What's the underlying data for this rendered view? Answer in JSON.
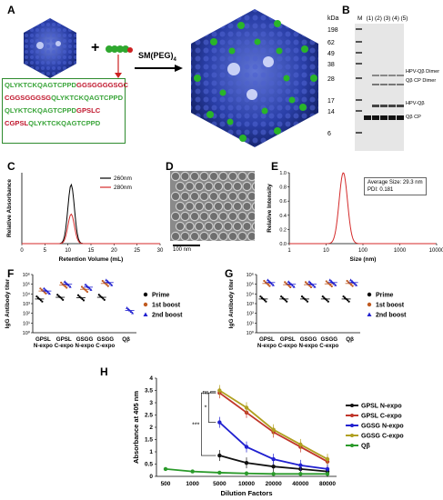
{
  "labels": {
    "A": "A",
    "B": "B",
    "C": "C",
    "D": "D",
    "E": "E",
    "F": "F",
    "G": "G",
    "H": "H"
  },
  "panelA": {
    "plus": "+",
    "reagent": "SM(PEG)",
    "reagent_sub": "4",
    "sequences": [
      [
        {
          "t": "QLYKTCKQAGTCPPD",
          "c": "g"
        },
        {
          "t": "GGSGGGGSGC",
          "c": "r"
        }
      ],
      [
        {
          "t": "CGGSGGGSG",
          "c": "r"
        },
        {
          "t": "QLYKTCKQAGTCPPD",
          "c": "g"
        }
      ],
      [
        {
          "t": "QLYKTCKQAGTCPPD",
          "c": "g"
        },
        {
          "t": "GPSLC",
          "c": "r"
        }
      ],
      [
        {
          "t": "CGPSL",
          "c": "r"
        },
        {
          "t": "QLYKTCKQAGTCPPD",
          "c": "g"
        }
      ]
    ]
  },
  "panelB": {
    "kda": "kDa",
    "markers": [
      "198",
      "62",
      "49",
      "38",
      "28",
      "17",
      "14",
      "6"
    ],
    "lanes": [
      "M",
      "(1)",
      "(2)",
      "(3)",
      "(4)",
      "(5)"
    ],
    "band_labels": [
      "HPV-Qβ Dimer",
      "Qβ CP Dimer",
      "HPV-Qβ",
      "Qβ CP"
    ]
  },
  "panelC": {
    "chart_data": {
      "type": "line",
      "xlabel": "Retention Volume (mL)",
      "ylabel": "Relative Absorbance",
      "xlim": [
        0,
        30
      ],
      "ylim": [
        0,
        1.2
      ],
      "xticks": [
        "0",
        "5",
        "10",
        "15",
        "20",
        "25",
        "30"
      ],
      "series": [
        {
          "name": "260nm",
          "color": "#000000",
          "peak_x": 10.7,
          "peak_y": 1.0,
          "width": 1.0
        },
        {
          "name": "280nm",
          "color": "#d42a2a",
          "peak_x": 10.7,
          "peak_y": 0.5,
          "width": 1.0
        }
      ]
    }
  },
  "panelD": {
    "scale": "100 nm"
  },
  "panelE": {
    "chart_data": {
      "type": "line",
      "xlabel": "Size (nm)",
      "ylabel": "Relative Intensity",
      "xscale": "log",
      "xlim": [
        1,
        10000
      ],
      "ylim": [
        0,
        1.0
      ],
      "xticks": [
        "1",
        "10",
        "100",
        "1000",
        "10000"
      ],
      "yticks": [
        "0.0",
        "0.2",
        "0.4",
        "0.6",
        "0.8",
        "1.0"
      ],
      "series": [
        {
          "name": "",
          "color": "#d42a2a",
          "peak_x": 29.3,
          "peak_y": 1.0
        }
      ]
    },
    "info_line1": "Average Size: 29.3 nm",
    "info_line2": "PDI: 0.181"
  },
  "panelF": {
    "chart_data": {
      "type": "scatter",
      "ylabel": "IgG Antibody titer",
      "yscale": "log",
      "yticks": [
        "10⁰",
        "10¹",
        "10²",
        "10³",
        "10⁴",
        "10⁵",
        "10⁶"
      ],
      "categories": [
        "GPSL N-expo",
        "GPSL C-expo",
        "GSGG N-expo",
        "GSGG C-expo",
        "Qβ"
      ],
      "series": [
        {
          "name": "Prime",
          "color": "#000000",
          "values": [
            3000,
            4500,
            4000,
            4500,
            null
          ]
        },
        {
          "name": "1st boost",
          "color": "#c05a20",
          "values": [
            20000,
            80000,
            30000,
            120000,
            null
          ]
        },
        {
          "name": "2nd boost",
          "color": "#2020d0",
          "values": [
            20000,
            100000,
            50000,
            150000,
            200
          ]
        }
      ]
    },
    "legend": [
      "Prime",
      "1st boost",
      "2nd boost"
    ]
  },
  "panelG": {
    "chart_data": {
      "type": "scatter",
      "ylabel": "IgG Antibody titer",
      "yscale": "log",
      "yticks": [
        "10⁰",
        "10¹",
        "10²",
        "10³",
        "10⁴",
        "10⁵",
        "10⁶"
      ],
      "categories": [
        "GPSL N-expo",
        "GPSL C-expo",
        "GSGG N-expo",
        "GSGG C-expo",
        "Qβ"
      ],
      "series": [
        {
          "name": "Prime",
          "color": "#000000",
          "values": [
            3000,
            3000,
            3000,
            3000,
            3000
          ]
        },
        {
          "name": "1st boost",
          "color": "#c05a20",
          "values": [
            120000,
            90000,
            90000,
            110000,
            120000
          ]
        },
        {
          "name": "2nd boost",
          "color": "#2020d0",
          "values": [
            150000,
            100000,
            100000,
            150000,
            150000
          ]
        }
      ]
    },
    "legend": [
      "Prime",
      "1st boost",
      "2nd boost"
    ]
  },
  "panelH": {
    "chart_data": {
      "type": "line",
      "xlabel": "Dilution Factors",
      "ylabel": "Absorbance at 405 nm",
      "ylim": [
        0,
        4
      ],
      "yticks": [
        "0",
        "0.5",
        "1",
        "1.5",
        "2",
        "2.5",
        "3",
        "3.5",
        "4"
      ],
      "categories": [
        "500",
        "1000",
        "5000",
        "10000",
        "20000",
        "40000",
        "80000"
      ],
      "series": [
        {
          "name": "GPSL N-expo",
          "color": "#111111",
          "values": [
            null,
            null,
            0.85,
            0.55,
            0.4,
            0.3,
            0.2
          ]
        },
        {
          "name": "GPSL C-expo",
          "color": "#c0362a",
          "values": [
            null,
            null,
            3.4,
            2.6,
            1.8,
            1.2,
            0.6
          ]
        },
        {
          "name": "GGSG N-expo",
          "color": "#2020d0",
          "values": [
            null,
            null,
            2.2,
            1.2,
            0.7,
            0.45,
            0.3
          ]
        },
        {
          "name": "GGSG C-expo",
          "color": "#b0a020",
          "values": [
            null,
            null,
            3.5,
            2.8,
            1.9,
            1.3,
            0.7
          ]
        },
        {
          "name": "Qβ",
          "color": "#2a9a2a",
          "values": [
            0.3,
            0.2,
            0.15,
            0.12,
            0.1,
            0.1,
            0.1
          ]
        }
      ],
      "annotations": [
        "ns",
        "*",
        "***"
      ]
    }
  }
}
